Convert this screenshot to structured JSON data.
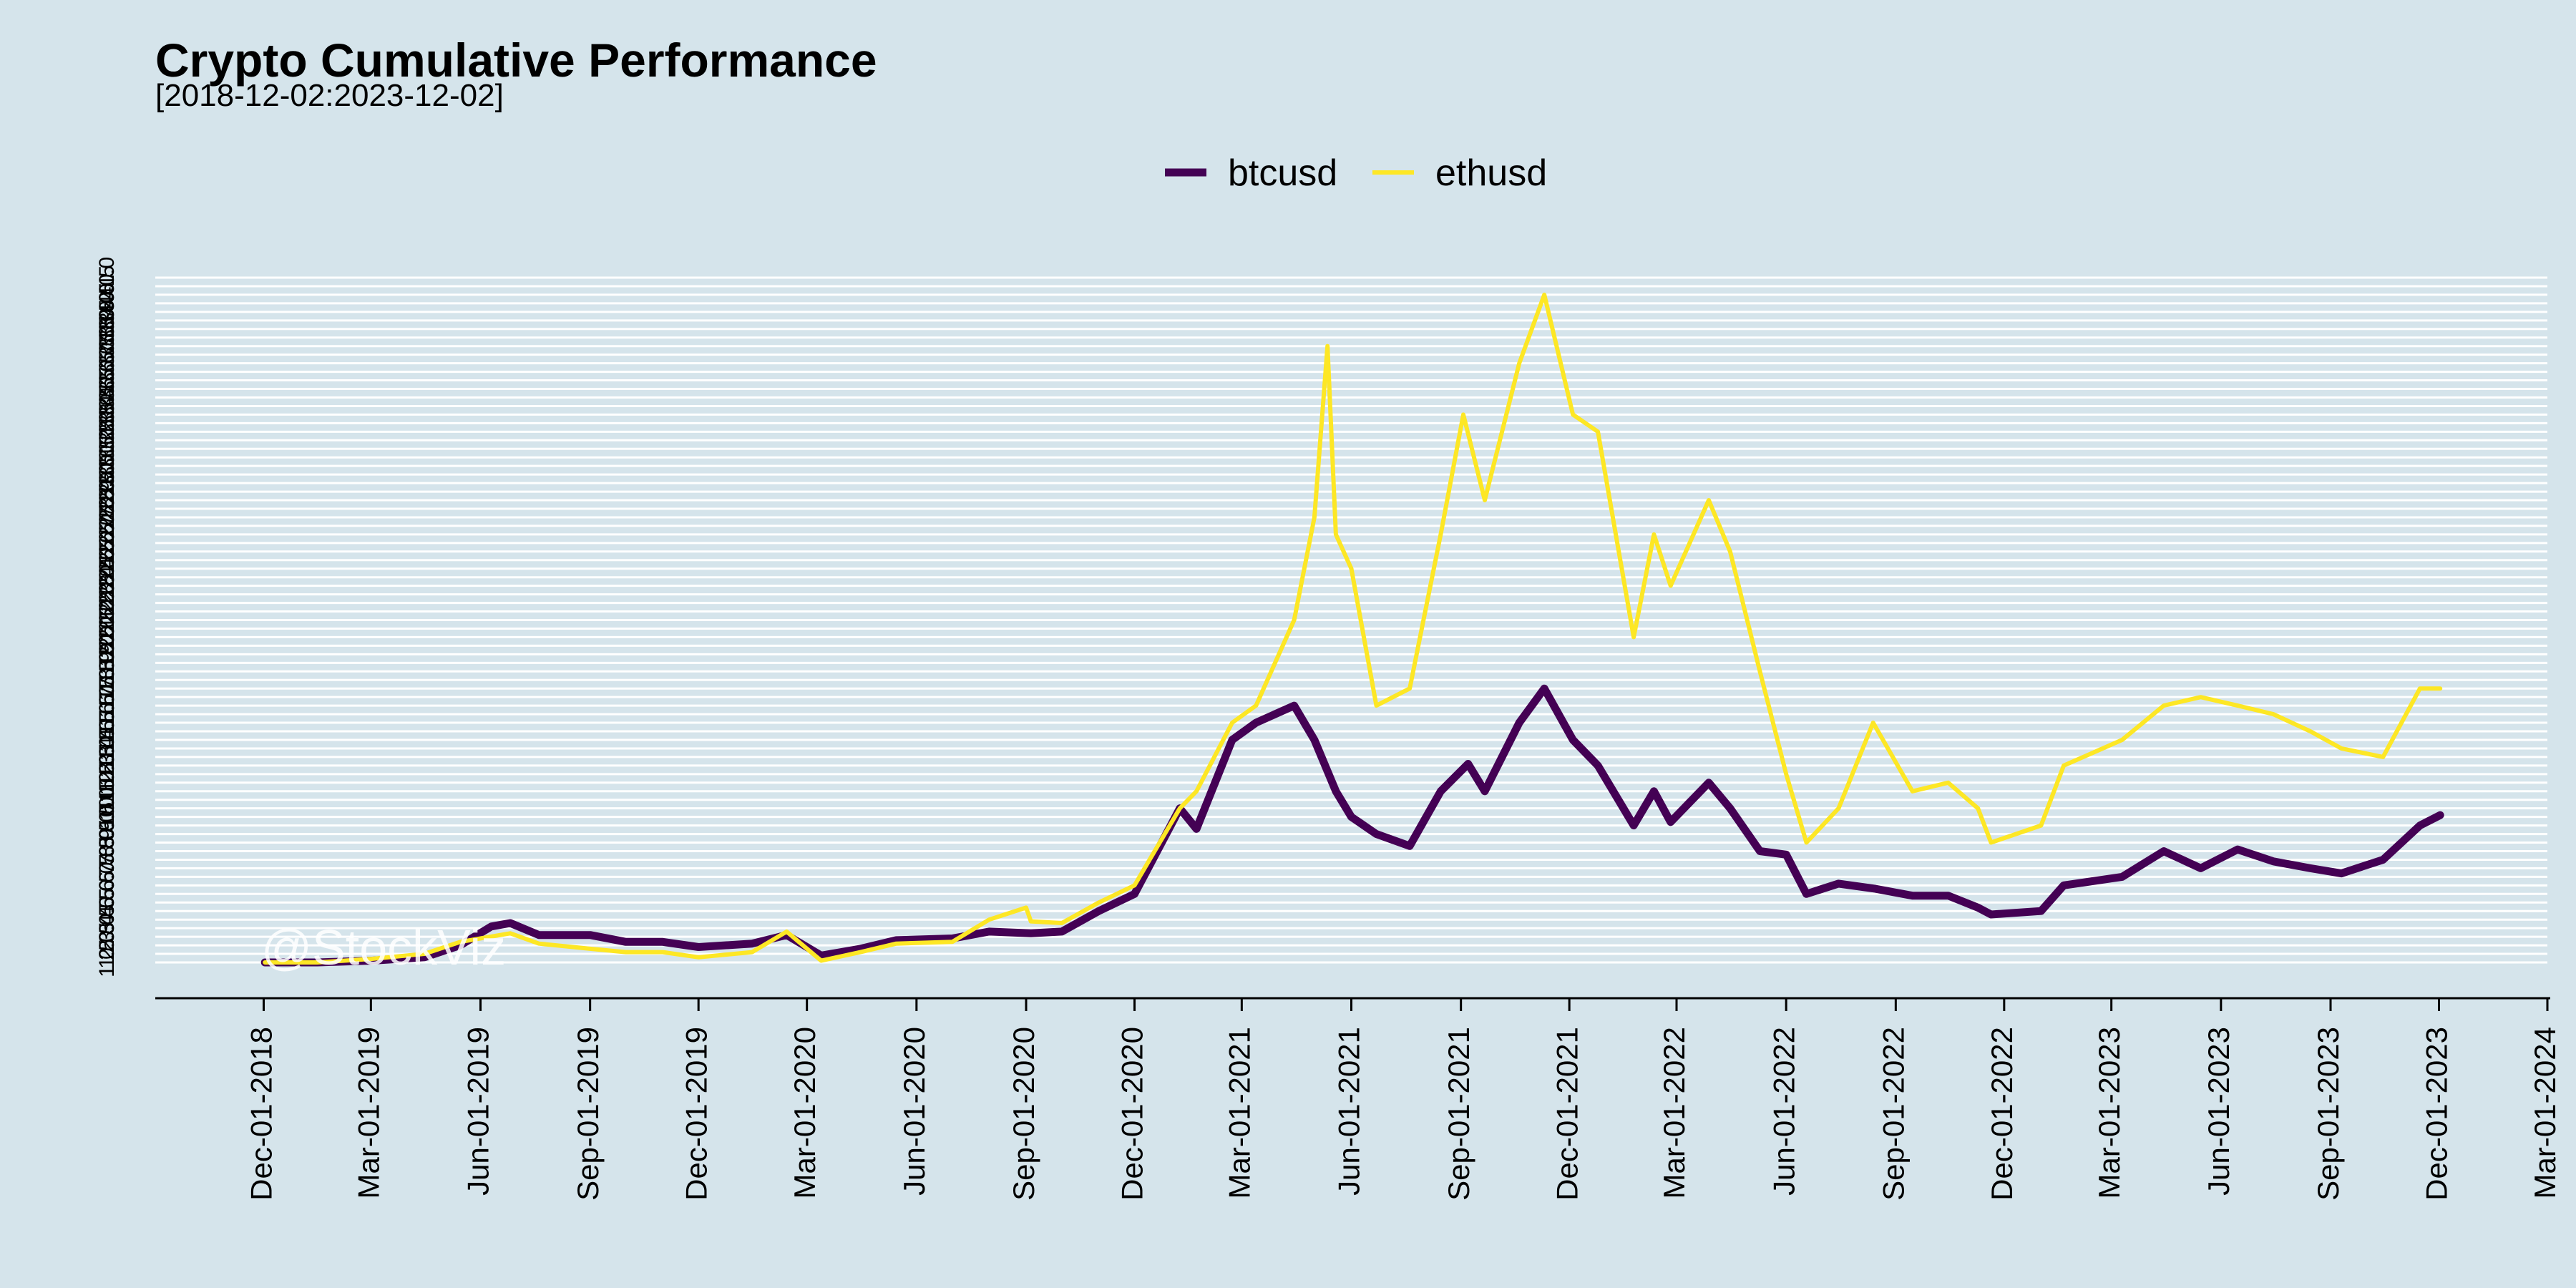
{
  "chart_data": {
    "type": "line",
    "title": "Crypto Cumulative Performance",
    "subtitle": "[2018-12-02:2023-12-02]",
    "watermark": "@StockViz",
    "xlabel": "",
    "ylabel": "",
    "x_axis_type": "date",
    "xlim": [
      "2018-09-01",
      "2024-03-01"
    ],
    "x_ticks": [
      "2018-12-01",
      "2019-03-01",
      "2019-06-01",
      "2019-09-01",
      "2019-12-01",
      "2020-03-01",
      "2020-06-01",
      "2020-09-01",
      "2020-12-01",
      "2021-03-01",
      "2021-06-01",
      "2021-09-01",
      "2021-12-01",
      "2022-03-01",
      "2022-06-01",
      "2022-09-01",
      "2022-12-01",
      "2023-03-01",
      "2023-06-01",
      "2023-09-01",
      "2023-12-01",
      "2024-03-01"
    ],
    "x_tick_labels": [
      "Dec-01-2018",
      "Mar-01-2019",
      "Jun-01-2019",
      "Sep-01-2019",
      "Dec-01-2019",
      "Mar-01-2020",
      "Jun-01-2020",
      "Sep-01-2020",
      "Dec-01-2020",
      "Mar-01-2021",
      "Jun-01-2021",
      "Sep-01-2021",
      "Dec-01-2021",
      "Mar-01-2022",
      "Jun-01-2022",
      "Sep-01-2022",
      "Dec-01-2022",
      "Mar-01-2023",
      "Jun-01-2023",
      "Sep-01-2023",
      "Dec-01-2023",
      "Mar-01-2024"
    ],
    "ylim": [
      1.0,
      41.0
    ],
    "y_tick_step": 0.5,
    "y_tick_label_first": "1.0",
    "y_tick_label_last": "41.0",
    "grid": true,
    "legend_position": "top-center",
    "colors": {
      "background": "#d5e4eb",
      "grid": "#ffffff",
      "axis": "#000000"
    },
    "series": [
      {
        "name": "btcusd",
        "color": "#440154",
        "x": [
          "2018-12-02",
          "2019-01-15",
          "2019-03-01",
          "2019-04-15",
          "2019-05-15",
          "2019-06-10",
          "2019-06-26",
          "2019-07-20",
          "2019-09-01",
          "2019-10-01",
          "2019-11-01",
          "2019-12-01",
          "2020-01-15",
          "2020-02-13",
          "2020-03-13",
          "2020-04-15",
          "2020-05-15",
          "2020-07-01",
          "2020-08-01",
          "2020-09-05",
          "2020-10-01",
          "2020-11-01",
          "2020-12-01",
          "2021-01-08",
          "2021-01-22",
          "2021-02-21",
          "2021-03-13",
          "2021-04-14",
          "2021-05-01",
          "2021-05-19",
          "2021-06-01",
          "2021-06-22",
          "2021-07-20",
          "2021-08-15",
          "2021-09-07",
          "2021-09-21",
          "2021-10-20",
          "2021-11-10",
          "2021-12-04",
          "2021-12-25",
          "2022-01-24",
          "2022-02-10",
          "2022-02-24",
          "2022-03-28",
          "2022-04-15",
          "2022-05-10",
          "2022-06-01",
          "2022-06-18",
          "2022-07-15",
          "2022-08-15",
          "2022-09-15",
          "2022-10-15",
          "2022-11-09",
          "2022-11-20",
          "2023-01-01",
          "2023-01-20",
          "2023-03-10",
          "2023-04-14",
          "2023-05-15",
          "2023-06-15",
          "2023-07-15",
          "2023-08-15",
          "2023-09-10",
          "2023-10-15",
          "2023-11-15",
          "2023-12-02"
        ],
        "values": [
          1.0,
          1.0,
          1.1,
          1.3,
          2.0,
          3.1,
          3.3,
          2.6,
          2.6,
          2.2,
          2.2,
          1.9,
          2.1,
          2.6,
          1.4,
          1.8,
          2.3,
          2.4,
          2.8,
          2.7,
          2.8,
          4.0,
          5.0,
          10.0,
          8.8,
          14.0,
          15.0,
          16.0,
          14.0,
          11.0,
          9.5,
          8.5,
          7.8,
          11.0,
          12.6,
          11.0,
          15.0,
          17.0,
          14.0,
          12.5,
          9.0,
          11.0,
          9.2,
          11.5,
          10.0,
          7.5,
          7.3,
          5.0,
          5.6,
          5.3,
          4.9,
          4.9,
          4.2,
          3.8,
          4.0,
          5.5,
          6.0,
          7.5,
          6.5,
          7.6,
          6.9,
          6.5,
          6.2,
          7.0,
          9.0,
          9.6
        ]
      },
      {
        "name": "ethusd",
        "color": "#fde725",
        "x": [
          "2018-12-02",
          "2019-01-15",
          "2019-03-01",
          "2019-04-15",
          "2019-05-15",
          "2019-06-26",
          "2019-07-20",
          "2019-09-01",
          "2019-10-01",
          "2019-11-01",
          "2019-12-01",
          "2020-01-15",
          "2020-02-13",
          "2020-03-13",
          "2020-04-15",
          "2020-05-15",
          "2020-07-01",
          "2020-08-01",
          "2020-09-01",
          "2020-09-05",
          "2020-10-01",
          "2020-11-01",
          "2020-12-01",
          "2021-01-08",
          "2021-01-22",
          "2021-02-21",
          "2021-03-13",
          "2021-04-14",
          "2021-05-01",
          "2021-05-12",
          "2021-05-19",
          "2021-06-01",
          "2021-06-22",
          "2021-07-20",
          "2021-08-15",
          "2021-09-03",
          "2021-09-21",
          "2021-10-20",
          "2021-11-10",
          "2021-12-04",
          "2021-12-25",
          "2022-01-24",
          "2022-02-10",
          "2022-02-24",
          "2022-03-28",
          "2022-04-15",
          "2022-05-10",
          "2022-06-01",
          "2022-06-18",
          "2022-07-15",
          "2022-08-13",
          "2022-09-15",
          "2022-10-15",
          "2022-11-09",
          "2022-11-20",
          "2023-01-01",
          "2023-01-20",
          "2023-03-10",
          "2023-04-14",
          "2023-05-15",
          "2023-06-15",
          "2023-07-15",
          "2023-08-15",
          "2023-09-10",
          "2023-10-15",
          "2023-11-15",
          "2023-12-02"
        ],
        "values": [
          1.0,
          1.0,
          1.2,
          1.5,
          2.2,
          2.7,
          2.1,
          1.8,
          1.6,
          1.6,
          1.3,
          1.6,
          2.8,
          1.1,
          1.6,
          2.1,
          2.2,
          3.5,
          4.2,
          3.4,
          3.3,
          4.5,
          5.5,
          10.0,
          11.0,
          15.0,
          16.0,
          21.0,
          27.0,
          37.0,
          26.0,
          24.0,
          16.0,
          17.0,
          26.0,
          33.0,
          28.0,
          36.0,
          40.0,
          33.0,
          32.0,
          20.0,
          26.0,
          23.0,
          28.0,
          25.0,
          18.0,
          12.0,
          8.0,
          10.0,
          15.0,
          11.0,
          11.5,
          10.0,
          8.0,
          9.0,
          12.5,
          14.0,
          16.0,
          16.5,
          16.0,
          15.5,
          14.5,
          13.5,
          13.0,
          17.0,
          17.0
        ]
      }
    ]
  }
}
